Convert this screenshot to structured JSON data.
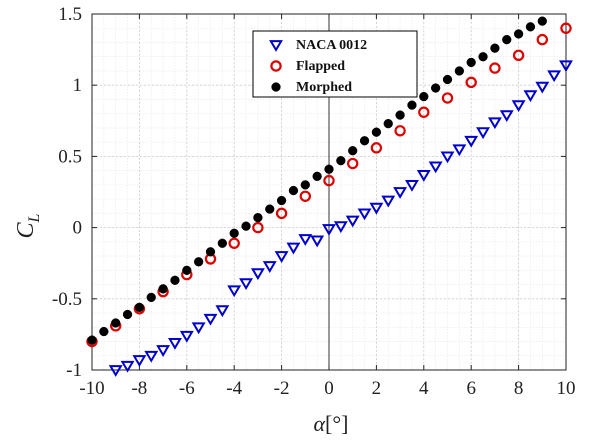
{
  "chart_data": {
    "type": "scatter",
    "xlabel_symbol": "α",
    "xlabel_unit": "[°]",
    "ylabel_main": "C",
    "ylabel_sub": "L",
    "xlim": [
      -10,
      10
    ],
    "ylim": [
      -1,
      1.5
    ],
    "xticks": [
      -10,
      -8,
      -6,
      -4,
      -2,
      0,
      2,
      4,
      6,
      8,
      10
    ],
    "yticks": [
      -1,
      -0.5,
      0,
      0.5,
      1,
      1.5
    ],
    "ytick_labels": [
      "-1",
      "-0.5",
      "0",
      "0.5",
      "1",
      "1.5"
    ],
    "grid": true,
    "minor_grid": true,
    "legend_position": "top-center",
    "series": [
      {
        "name": "NACA 0012",
        "marker": "triangle-down-open",
        "color": "#0000cc",
        "x": [
          -9,
          -8.5,
          -8,
          -7.5,
          -7,
          -6.5,
          -6,
          -5.5,
          -5,
          -4.5,
          -4,
          -3.5,
          -3,
          -2.5,
          -2,
          -1.5,
          -1,
          -0.5,
          0,
          0.5,
          1,
          1.5,
          2,
          2.5,
          3,
          3.5,
          4,
          4.5,
          5,
          5.5,
          6,
          6.5,
          7,
          7.5,
          8,
          8.5,
          9,
          9.5,
          10
        ],
        "y": [
          -1.0,
          -0.97,
          -0.93,
          -0.9,
          -0.86,
          -0.81,
          -0.76,
          -0.7,
          -0.64,
          -0.58,
          -0.44,
          -0.39,
          -0.32,
          -0.27,
          -0.2,
          -0.14,
          -0.08,
          -0.09,
          -0.01,
          0.01,
          0.05,
          0.1,
          0.14,
          0.19,
          0.25,
          0.3,
          0.37,
          0.43,
          0.5,
          0.55,
          0.61,
          0.67,
          0.74,
          0.79,
          0.86,
          0.93,
          0.99,
          1.07,
          1.14
        ]
      },
      {
        "name": "Flapped",
        "marker": "circle-open",
        "color": "#dd0000",
        "x": [
          -10,
          -9,
          -8,
          -7,
          -6,
          -5,
          -4,
          -3,
          -2,
          -1,
          0,
          1,
          2,
          3,
          4,
          5,
          6,
          7,
          8,
          9,
          10
        ],
        "y": [
          -0.8,
          -0.69,
          -0.57,
          -0.45,
          -0.33,
          -0.22,
          -0.11,
          0.0,
          0.1,
          0.22,
          0.33,
          0.45,
          0.56,
          0.68,
          0.81,
          0.91,
          1.02,
          1.12,
          1.21,
          1.32,
          1.4
        ]
      },
      {
        "name": "Morphed",
        "marker": "circle-filled",
        "color": "#000000",
        "x": [
          -10,
          -9.5,
          -9,
          -8.5,
          -8,
          -7.5,
          -7,
          -6.5,
          -6,
          -5.5,
          -5,
          -4.5,
          -4,
          -3.5,
          -3,
          -2.5,
          -2,
          -1.5,
          -1,
          -0.5,
          0,
          0.5,
          1,
          1.5,
          2,
          2.5,
          3,
          3.5,
          4,
          4.5,
          5,
          5.5,
          6,
          6.5,
          7,
          7.5,
          8,
          8.5,
          9
        ],
        "y": [
          -0.79,
          -0.73,
          -0.67,
          -0.61,
          -0.56,
          -0.49,
          -0.43,
          -0.37,
          -0.3,
          -0.24,
          -0.17,
          -0.11,
          -0.04,
          0.01,
          0.07,
          0.13,
          0.19,
          0.26,
          0.3,
          0.36,
          0.41,
          0.47,
          0.54,
          0.61,
          0.67,
          0.73,
          0.79,
          0.86,
          0.92,
          0.98,
          1.04,
          1.1,
          1.16,
          1.2,
          1.26,
          1.32,
          1.36,
          1.41,
          1.45
        ]
      }
    ]
  }
}
